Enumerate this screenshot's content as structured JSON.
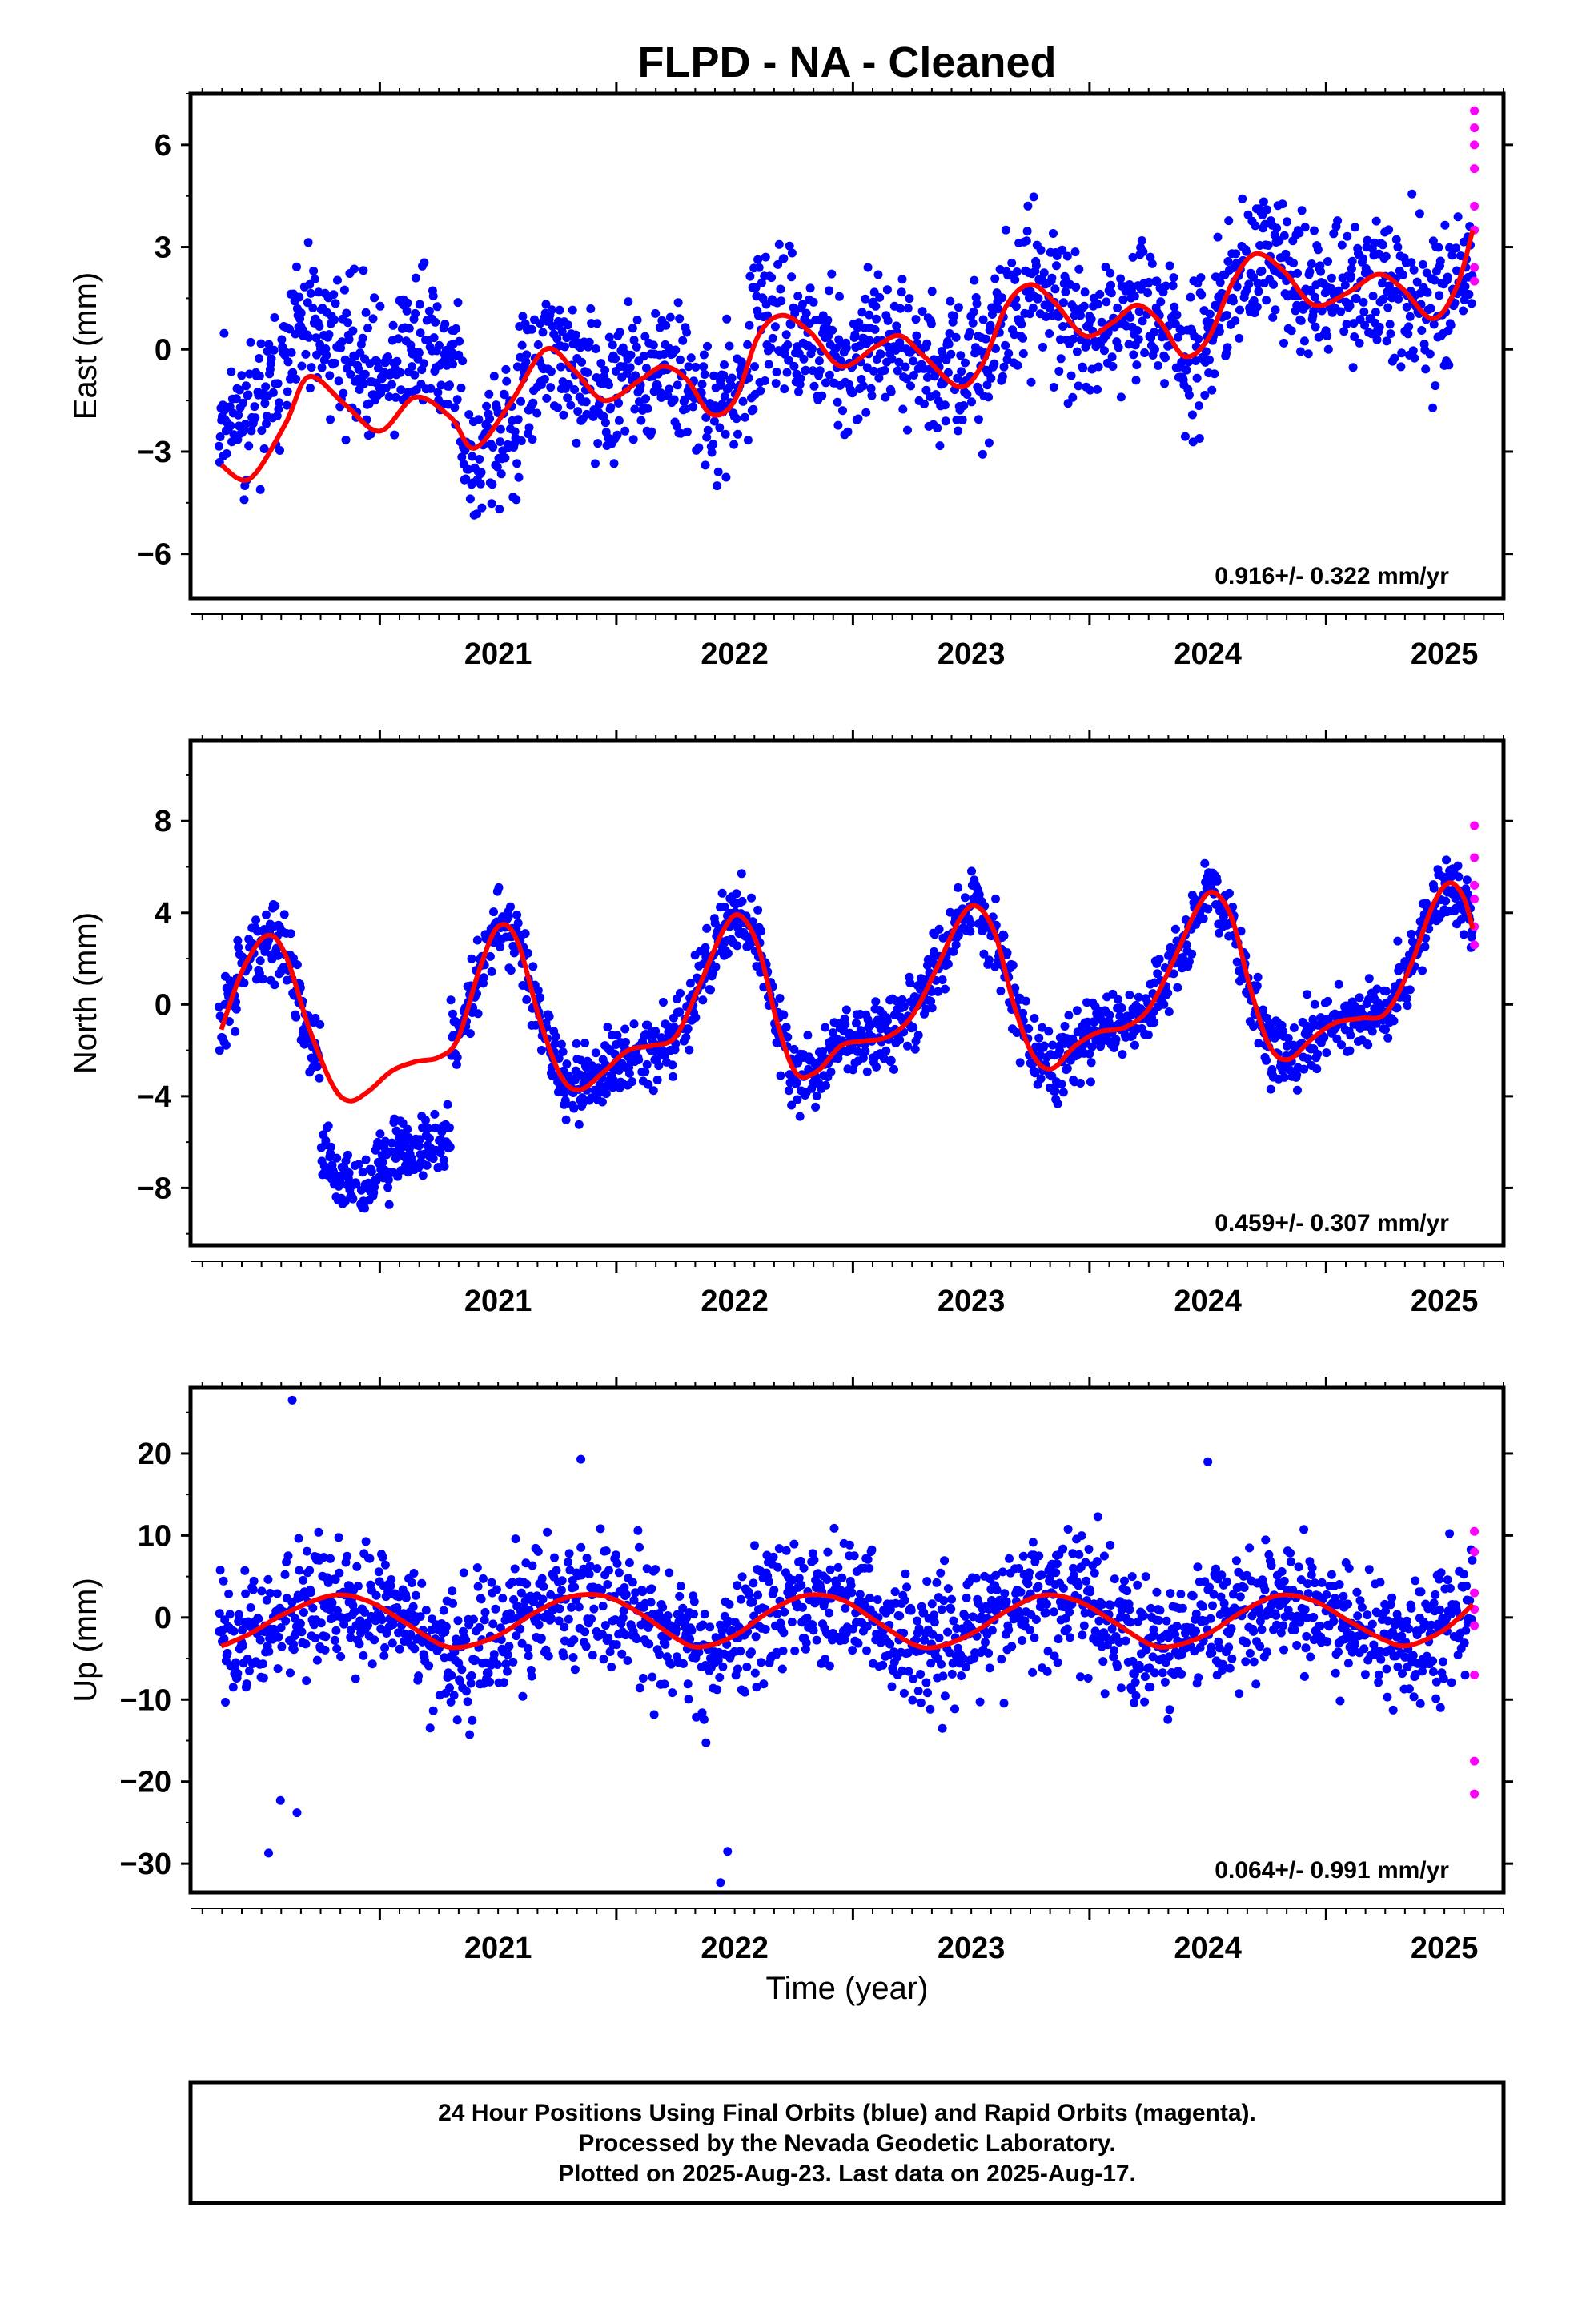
{
  "chart_data": {
    "title": "FLPD  - NA - Cleaned",
    "type": "scatter",
    "xlabel": "Time (year)",
    "x_ticks": [
      2021,
      2022,
      2023,
      2024,
      2025
    ],
    "xlim": [
      2020.2,
      2025.75
    ],
    "series_colors": {
      "final_orbits": "#0000ff",
      "rapid_orbits": "#ff00ff",
      "fit_curve": "#ff0000"
    },
    "panels": [
      {
        "component": "east",
        "ylabel": "East (mm)",
        "ylim": [
          -7.3,
          7.5
        ],
        "y_ticks": [
          6,
          3,
          0,
          -3,
          -6
        ],
        "y_tick_labels": [
          "6",
          "3",
          "0",
          "−3",
          "−6"
        ],
        "rate_label": "0.916+/- 0.322 mm/yr",
        "model": {
          "start": 2020.32,
          "end": 2025.62,
          "offset": -1.2,
          "rate": 0.916,
          "amp1": 0.5,
          "phase1": 4.7,
          "amp2": 1.45,
          "phase2": 2.3
        },
        "noise": 1.5,
        "seed": 11,
        "fit_curve": [
          [
            2020.33,
            -3.4
          ],
          [
            2020.45,
            -3.8
          ],
          [
            2020.6,
            -2.2
          ],
          [
            2020.7,
            -0.8
          ],
          [
            2020.85,
            -1.6
          ],
          [
            2021.0,
            -2.4
          ],
          [
            2021.15,
            -1.4
          ],
          [
            2021.3,
            -2.0
          ],
          [
            2021.4,
            -2.9
          ],
          [
            2021.55,
            -1.6
          ],
          [
            2021.7,
            0.0
          ],
          [
            2021.82,
            -0.6
          ],
          [
            2021.95,
            -1.5
          ],
          [
            2022.1,
            -0.9
          ],
          [
            2022.2,
            -0.5
          ],
          [
            2022.3,
            -0.9
          ],
          [
            2022.4,
            -1.9
          ],
          [
            2022.5,
            -1.5
          ],
          [
            2022.6,
            0.4
          ],
          [
            2022.7,
            1.0
          ],
          [
            2022.82,
            0.5
          ],
          [
            2022.95,
            -0.5
          ],
          [
            2023.1,
            0.1
          ],
          [
            2023.2,
            0.4
          ],
          [
            2023.3,
            -0.2
          ],
          [
            2023.45,
            -1.1
          ],
          [
            2023.55,
            -0.4
          ],
          [
            2023.65,
            1.3
          ],
          [
            2023.75,
            1.9
          ],
          [
            2023.85,
            1.4
          ],
          [
            2023.98,
            0.4
          ],
          [
            2024.1,
            0.8
          ],
          [
            2024.2,
            1.3
          ],
          [
            2024.3,
            0.8
          ],
          [
            2024.4,
            -0.2
          ],
          [
            2024.5,
            0.3
          ],
          [
            2024.6,
            1.9
          ],
          [
            2024.7,
            2.8
          ],
          [
            2024.82,
            2.3
          ],
          [
            2024.95,
            1.3
          ],
          [
            2025.1,
            1.7
          ],
          [
            2025.22,
            2.2
          ],
          [
            2025.32,
            1.8
          ],
          [
            2025.45,
            0.9
          ],
          [
            2025.55,
            1.8
          ],
          [
            2025.62,
            3.5
          ]
        ],
        "rapid_points": [
          [
            2025.62,
            7.0
          ],
          [
            2025.62,
            6.5
          ],
          [
            2025.62,
            6.0
          ],
          [
            2025.62,
            5.3
          ],
          [
            2025.62,
            4.2
          ],
          [
            2025.62,
            3.5
          ],
          [
            2025.62,
            2.4
          ],
          [
            2025.62,
            2.0
          ]
        ]
      },
      {
        "component": "north",
        "ylabel": "North (mm)",
        "ylim": [
          -10.5,
          11.5
        ],
        "y_ticks": [
          8,
          4,
          0,
          -4,
          -8
        ],
        "y_tick_labels": [
          "8",
          "4",
          "0",
          "−4",
          "−8"
        ],
        "rate_label": "0.459+/- 0.307 mm/yr",
        "model": {
          "start": 2020.32,
          "end": 2025.62,
          "offset": -0.5,
          "rate": 0.459,
          "amp1": 3.4,
          "phase1": -1.57,
          "amp2": 1.2,
          "phase2": 0.6
        },
        "noise": 1.1,
        "seed": 29,
        "fit_curve": [
          [
            2020.33,
            -1.1
          ],
          [
            2020.42,
            1.5
          ],
          [
            2020.52,
            3.0
          ],
          [
            2020.6,
            2.2
          ],
          [
            2020.7,
            -1.0
          ],
          [
            2020.8,
            -3.5
          ],
          [
            2020.87,
            -4.2
          ],
          [
            2020.95,
            -3.8
          ],
          [
            2021.05,
            -2.9
          ],
          [
            2021.15,
            -2.5
          ],
          [
            2021.25,
            -2.3
          ],
          [
            2021.33,
            -1.5
          ],
          [
            2021.42,
            1.5
          ],
          [
            2021.5,
            3.4
          ],
          [
            2021.58,
            2.8
          ],
          [
            2021.68,
            -0.8
          ],
          [
            2021.77,
            -3.2
          ],
          [
            2021.85,
            -3.7
          ],
          [
            2021.95,
            -2.9
          ],
          [
            2022.05,
            -2.0
          ],
          [
            2022.15,
            -1.8
          ],
          [
            2022.25,
            -1.4
          ],
          [
            2022.35,
            0.8
          ],
          [
            2022.45,
            3.2
          ],
          [
            2022.52,
            3.9
          ],
          [
            2022.6,
            2.5
          ],
          [
            2022.68,
            -0.8
          ],
          [
            2022.76,
            -3.0
          ],
          [
            2022.85,
            -2.9
          ],
          [
            2022.95,
            -1.8
          ],
          [
            2023.05,
            -1.6
          ],
          [
            2023.15,
            -1.4
          ],
          [
            2023.25,
            -0.5
          ],
          [
            2023.35,
            1.5
          ],
          [
            2023.45,
            3.7
          ],
          [
            2023.52,
            4.3
          ],
          [
            2023.6,
            3.1
          ],
          [
            2023.68,
            0.0
          ],
          [
            2023.76,
            -2.2
          ],
          [
            2023.84,
            -2.8
          ],
          [
            2023.94,
            -1.8
          ],
          [
            2024.04,
            -1.2
          ],
          [
            2024.15,
            -1.0
          ],
          [
            2024.25,
            -0.2
          ],
          [
            2024.35,
            1.8
          ],
          [
            2024.45,
            4.1
          ],
          [
            2024.52,
            4.9
          ],
          [
            2024.6,
            3.8
          ],
          [
            2024.68,
            0.7
          ],
          [
            2024.76,
            -1.8
          ],
          [
            2024.84,
            -2.4
          ],
          [
            2024.94,
            -1.5
          ],
          [
            2025.04,
            -0.8
          ],
          [
            2025.15,
            -0.6
          ],
          [
            2025.25,
            -0.4
          ],
          [
            2025.35,
            1.5
          ],
          [
            2025.45,
            4.3
          ],
          [
            2025.52,
            5.3
          ],
          [
            2025.58,
            4.7
          ],
          [
            2025.62,
            3.3
          ]
        ],
        "rapid_points": [
          [
            2025.62,
            7.8
          ],
          [
            2025.62,
            6.4
          ],
          [
            2025.62,
            5.2
          ],
          [
            2025.62,
            4.6
          ],
          [
            2025.62,
            3.4
          ],
          [
            2025.62,
            2.6
          ]
        ]
      },
      {
        "component": "up",
        "ylabel": "Up (mm)",
        "ylim": [
          -33.5,
          28
        ],
        "y_ticks": [
          20,
          10,
          0,
          -10,
          -20,
          -30
        ],
        "y_tick_labels": [
          "20",
          "10",
          "0",
          "−10",
          "−20",
          "−30"
        ],
        "rate_label": "0.064+/- 0.991 mm/yr",
        "model": {
          "start": 2020.32,
          "end": 2025.62,
          "offset": 0.0,
          "rate": 0.064,
          "amp1": 3.1,
          "phase1": 0.9,
          "amp2": 0.0,
          "phase2": 0.0
        },
        "noise": 5.5,
        "seed": 47,
        "fit_curve": [
          [
            2020.33,
            -3.5
          ],
          [
            2020.45,
            -2.0
          ],
          [
            2020.6,
            0.5
          ],
          [
            2020.8,
            2.7
          ],
          [
            2020.95,
            2.0
          ],
          [
            2021.1,
            -0.5
          ],
          [
            2021.25,
            -3.2
          ],
          [
            2021.35,
            -3.6
          ],
          [
            2021.5,
            -2.2
          ],
          [
            2021.65,
            0.5
          ],
          [
            2021.8,
            2.5
          ],
          [
            2021.95,
            2.6
          ],
          [
            2022.1,
            0.5
          ],
          [
            2022.25,
            -2.5
          ],
          [
            2022.35,
            -3.6
          ],
          [
            2022.5,
            -2.2
          ],
          [
            2022.65,
            0.8
          ],
          [
            2022.8,
            2.7
          ],
          [
            2022.95,
            2.2
          ],
          [
            2023.1,
            -0.5
          ],
          [
            2023.25,
            -3.2
          ],
          [
            2023.35,
            -3.6
          ],
          [
            2023.5,
            -2.0
          ],
          [
            2023.65,
            0.8
          ],
          [
            2023.8,
            2.7
          ],
          [
            2023.95,
            2.0
          ],
          [
            2024.1,
            -0.5
          ],
          [
            2024.25,
            -3.2
          ],
          [
            2024.35,
            -3.5
          ],
          [
            2024.5,
            -2.0
          ],
          [
            2024.65,
            0.8
          ],
          [
            2024.8,
            2.7
          ],
          [
            2024.95,
            2.0
          ],
          [
            2025.1,
            -0.5
          ],
          [
            2025.25,
            -2.8
          ],
          [
            2025.35,
            -3.4
          ],
          [
            2025.5,
            -1.5
          ],
          [
            2025.62,
            1.6
          ]
        ],
        "rapid_points": [
          [
            2025.62,
            10.5
          ],
          [
            2025.62,
            8.0
          ],
          [
            2025.62,
            3.0
          ],
          [
            2025.62,
            1.0
          ],
          [
            2025.62,
            -1.0
          ],
          [
            2025.62,
            -7.0
          ],
          [
            2025.62,
            -17.5
          ],
          [
            2025.62,
            -21.5
          ]
        ],
        "outliers": [
          [
            2020.63,
            26.5
          ],
          [
            2021.85,
            19.3
          ],
          [
            2024.5,
            19.0
          ],
          [
            2020.53,
            -28.7
          ],
          [
            2022.44,
            -32.3
          ],
          [
            2022.47,
            -28.5
          ],
          [
            2020.65,
            -23.8
          ],
          [
            2020.58,
            -22.3
          ]
        ]
      }
    ]
  },
  "footer": {
    "line1": "24 Hour Positions Using Final Orbits (blue) and Rapid Orbits (magenta).",
    "line2": "Processed by the Nevada Geodetic Laboratory.",
    "line3": "Plotted on 2025-Aug-23. Last data on 2025-Aug-17."
  }
}
